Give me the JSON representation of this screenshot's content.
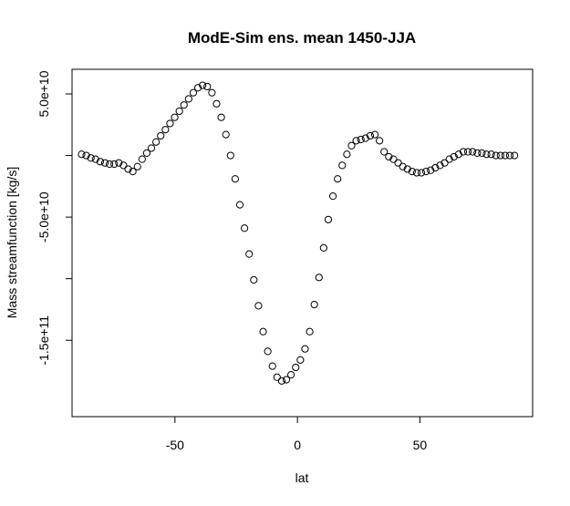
{
  "chart_data": {
    "type": "scatter",
    "title": "ModE-Sim ens. mean 1450-JJA",
    "xlabel": "lat",
    "ylabel": "Mass streamfunction [kg/s]",
    "xlim": [
      -92,
      96
    ],
    "ylim": [
      -212000000000,
      70000000000
    ],
    "x_ticks": [
      {
        "value": -50,
        "label": "-50"
      },
      {
        "value": 0,
        "label": "0"
      },
      {
        "value": 50,
        "label": "50"
      }
    ],
    "y_ticks": [
      {
        "value": 50000000000,
        "label": "5.0e+10"
      },
      {
        "value": 0,
        "label": ""
      },
      {
        "value": -50000000000,
        "label": "-5.0e+10"
      },
      {
        "value": -100000000000,
        "label": ""
      },
      {
        "value": -150000000000,
        "label": "-1.5e+11"
      }
    ],
    "marker": "open-circle",
    "grid": false,
    "series": [
      {
        "x": [
          -88.1,
          -86.2,
          -84.3,
          -82.4,
          -80.5,
          -78.6,
          -76.7,
          -74.8,
          -72.9,
          -71.0,
          -69.1,
          -67.2,
          -65.3,
          -63.4,
          -61.5,
          -59.6,
          -57.7,
          -55.8,
          -53.9,
          -52.0,
          -50.1,
          -48.2,
          -46.3,
          -44.4,
          -42.5,
          -40.6,
          -38.7,
          -36.8,
          -34.9,
          -33.0,
          -31.1,
          -29.2,
          -27.3,
          -25.4,
          -23.5,
          -21.6,
          -19.7,
          -17.8,
          -15.9,
          -14.0,
          -12.1,
          -10.2,
          -8.3,
          -6.4,
          -4.5,
          -2.6,
          -0.7,
          1.2,
          3.1,
          5.0,
          6.9,
          8.8,
          10.7,
          12.6,
          14.5,
          16.4,
          18.3,
          20.2,
          22.1,
          24.0,
          25.9,
          27.8,
          29.7,
          31.6,
          33.5,
          35.4,
          37.3,
          39.2,
          41.1,
          43.0,
          44.9,
          46.8,
          48.7,
          50.6,
          52.5,
          54.4,
          56.3,
          58.2,
          60.1,
          62.0,
          63.9,
          65.8,
          67.7,
          69.6,
          71.5,
          73.4,
          75.3,
          77.2,
          79.1,
          81.0,
          82.9,
          84.8,
          86.7,
          88.6
        ],
        "values": [
          1000000000,
          0,
          -2000000000,
          -3000000000,
          -5000000000,
          -6000000000,
          -7000000000,
          -7000000000,
          -6000000000,
          -8000000000,
          -11000000000,
          -13000000000,
          -9000000000,
          -3000000000,
          2000000000,
          6000000000,
          11000000000,
          16000000000,
          21000000000,
          26000000000,
          31000000000,
          36000000000,
          41000000000,
          46000000000,
          51000000000,
          55000000000,
          57000000000,
          56000000000,
          51000000000,
          42000000000,
          31000000000,
          17000000000,
          0,
          -19000000000,
          -40000000000,
          -59000000000,
          -80000000000,
          -101000000000,
          -122000000000,
          -143000000000,
          -159000000000,
          -171000000000,
          -180000000000,
          -183000000000,
          -182000000000,
          -178000000000,
          -172000000000,
          -166000000000,
          -157000000000,
          -143000000000,
          -121000000000,
          -99000000000,
          -75000000000,
          -52000000000,
          -33000000000,
          -19000000000,
          -8000000000,
          1000000000,
          8000000000,
          12000000000,
          13000000000,
          14000000000,
          16000000000,
          17000000000,
          12000000000,
          3000000000,
          -1000000000,
          -3000000000,
          -6000000000,
          -9000000000,
          -11000000000,
          -13000000000,
          -14000000000,
          -14000000000,
          -13000000000,
          -12000000000,
          -10000000000,
          -8000000000,
          -6000000000,
          -3000000000,
          -1000000000,
          1000000000,
          3000000000,
          3000000000,
          3000000000,
          2000000000,
          2000000000,
          1000000000,
          1000000000,
          0,
          0,
          0,
          0,
          0
        ]
      }
    ]
  }
}
